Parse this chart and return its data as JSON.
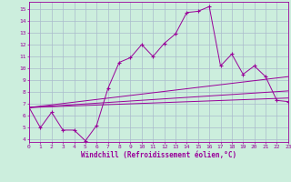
{
  "title": "",
  "xlabel": "Windchill (Refroidissement éolien,°C)",
  "ylabel": "",
  "background_color": "#cceedd",
  "grid_color": "#aabbcc",
  "line_color": "#990099",
  "xlim": [
    0,
    23
  ],
  "ylim": [
    3.8,
    15.6
  ],
  "yticks": [
    4,
    5,
    6,
    7,
    8,
    9,
    10,
    11,
    12,
    13,
    14,
    15
  ],
  "xticks": [
    0,
    1,
    2,
    3,
    4,
    5,
    6,
    7,
    8,
    9,
    10,
    11,
    12,
    13,
    14,
    15,
    16,
    17,
    18,
    19,
    20,
    21,
    22,
    23
  ],
  "line1_x": [
    0,
    1,
    2,
    3,
    4,
    5,
    6,
    7,
    8,
    9,
    10,
    11,
    12,
    13,
    14,
    15,
    16,
    17,
    18,
    19,
    20,
    21,
    22,
    23
  ],
  "line1_y": [
    6.7,
    5.0,
    6.3,
    4.8,
    4.8,
    3.9,
    5.2,
    8.3,
    10.5,
    10.9,
    12.0,
    11.0,
    12.1,
    12.9,
    14.7,
    14.8,
    15.2,
    10.2,
    11.2,
    9.5,
    10.2,
    9.3,
    7.3,
    7.2
  ],
  "line2_x": [
    0,
    23
  ],
  "line2_y": [
    6.7,
    7.5
  ],
  "line3_x": [
    0,
    23
  ],
  "line3_y": [
    6.7,
    9.3
  ],
  "line4_x": [
    0,
    23
  ],
  "line4_y": [
    6.7,
    8.1
  ]
}
